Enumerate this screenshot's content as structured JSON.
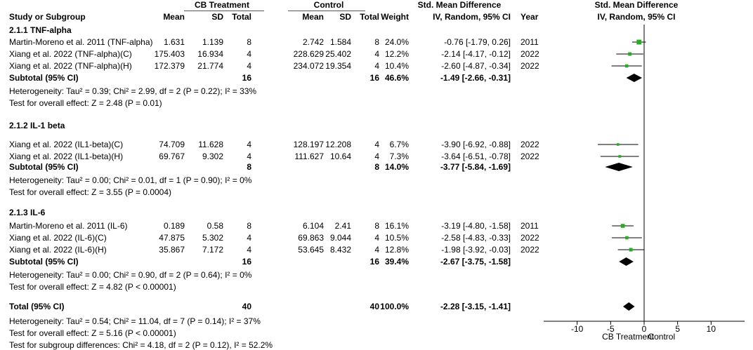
{
  "header": {
    "cb_treatment": "CB Treatment",
    "control": "Control",
    "smd_col": "Std. Mean Difference",
    "smd_method": "IV, Random, 95% CI",
    "plot_title": "Std. Mean Difference",
    "plot_method": "IV, Random, 95% CI",
    "study_col": "Study or Subgroup",
    "mean": "Mean",
    "sd": "SD",
    "total": "Total",
    "weight": "Weight",
    "year": "Year"
  },
  "subgroups": [
    {
      "title": "2.1.1 TNF-alpha",
      "studies": [
        {
          "name": "Martin-Moreno et al. 2011 (TNF-alpha)",
          "cb_mean": "1.631",
          "cb_sd": "1.139",
          "cb_n": "8",
          "c_mean": "2.742",
          "c_sd": "1.584",
          "c_n": "8",
          "weight": "24.0%",
          "ci_text": "-0.76 [-1.79, 0.26]",
          "year": "2011",
          "smd": -0.76,
          "lo": -1.79,
          "hi": 0.26
        },
        {
          "name": "Xiang et al. 2022 (TNF-alpha)(C)",
          "cb_mean": "175.403",
          "cb_sd": "16.934",
          "cb_n": "4",
          "c_mean": "228.629",
          "c_sd": "25.402",
          "c_n": "4",
          "weight": "12.2%",
          "ci_text": "-2.14 [-4.17, -0.12]",
          "year": "2022",
          "smd": -2.14,
          "lo": -4.17,
          "hi": -0.12
        },
        {
          "name": "Xiang et al. 2022 (TNF-alpha)(H)",
          "cb_mean": "172.379",
          "cb_sd": "21.774",
          "cb_n": "4",
          "c_mean": "234.072",
          "c_sd": "19.354",
          "c_n": "4",
          "weight": "10.4%",
          "ci_text": "-2.60 [-4.87, -0.34]",
          "year": "2022",
          "smd": -2.6,
          "lo": -4.87,
          "hi": -0.34
        }
      ],
      "subtotal": {
        "label": "Subtotal (95% CI)",
        "cb_n": "16",
        "c_n": "16",
        "weight": "46.6%",
        "ci_text": "-1.49 [-2.66, -0.31]",
        "smd": -1.49,
        "lo": -2.66,
        "hi": -0.31
      },
      "heterogeneity": "Heterogeneity: Tau² = 0.39; Chi² = 2.99, df = 2 (P = 0.22); I² = 33%",
      "overall": "Test for overall effect: Z = 2.48 (P = 0.01)"
    },
    {
      "title": "2.1.2 IL-1 beta",
      "studies": [
        {
          "name": "Xiang et al. 2022 (IL1-beta)(C)",
          "cb_mean": "74.709",
          "cb_sd": "11.628",
          "cb_n": "4",
          "c_mean": "128.197",
          "c_sd": "12.208",
          "c_n": "4",
          "weight": "6.7%",
          "ci_text": "-3.90 [-6.92, -0.88]",
          "year": "2022",
          "smd": -3.9,
          "lo": -6.92,
          "hi": -0.88
        },
        {
          "name": "Xiang et al. 2022 (IL1-beta)(H)",
          "cb_mean": "69.767",
          "cb_sd": "9.302",
          "cb_n": "4",
          "c_mean": "111.627",
          "c_sd": "10.64",
          "c_n": "4",
          "weight": "7.3%",
          "ci_text": "-3.64 [-6.51, -0.78]",
          "year": "2022",
          "smd": -3.64,
          "lo": -6.51,
          "hi": -0.78
        }
      ],
      "subtotal": {
        "label": "Subtotal (95% CI)",
        "cb_n": "8",
        "c_n": "8",
        "weight": "14.0%",
        "ci_text": "-3.77 [-5.84, -1.69]",
        "smd": -3.77,
        "lo": -5.84,
        "hi": -1.69
      },
      "heterogeneity": "Heterogeneity: Tau² = 0.00; Chi² = 0.01, df = 1 (P = 0.90); I² = 0%",
      "overall": "Test for overall effect: Z = 3.55 (P = 0.0004)"
    },
    {
      "title": "2.1.3 IL-6",
      "studies": [
        {
          "name": "Martin-Moreno et al. 2011 (IL-6)",
          "cb_mean": "0.189",
          "cb_sd": "0.58",
          "cb_n": "8",
          "c_mean": "6.104",
          "c_sd": "2.41",
          "c_n": "8",
          "weight": "16.1%",
          "ci_text": "-3.19 [-4.80, -1.58]",
          "year": "2011",
          "smd": -3.19,
          "lo": -4.8,
          "hi": -1.58
        },
        {
          "name": "Xiang et al. 2022 (IL-6)(C)",
          "cb_mean": "47.875",
          "cb_sd": "5.302",
          "cb_n": "4",
          "c_mean": "69.863",
          "c_sd": "9.044",
          "c_n": "4",
          "weight": "10.5%",
          "ci_text": "-2.58 [-4.83, -0.33]",
          "year": "2022",
          "smd": -2.58,
          "lo": -4.83,
          "hi": -0.33
        },
        {
          "name": "Xiang et al. 2022 (IL-6)(H)",
          "cb_mean": "35.867",
          "cb_sd": "7.172",
          "cb_n": "4",
          "c_mean": "53.645",
          "c_sd": "8.432",
          "c_n": "4",
          "weight": "12.8%",
          "ci_text": "-1.98 [-3.92, -0.03]",
          "year": "2022",
          "smd": -1.98,
          "lo": -3.92,
          "hi": -0.03
        }
      ],
      "subtotal": {
        "label": "Subtotal (95% CI)",
        "cb_n": "16",
        "c_n": "16",
        "weight": "39.4%",
        "ci_text": "-2.67 [-3.75, -1.58]",
        "smd": -2.67,
        "lo": -3.75,
        "hi": -1.58
      },
      "heterogeneity": "Heterogeneity: Tau² = 0.00; Chi² = 0.90, df = 2 (P = 0.64); I² = 0%",
      "overall": "Test for overall effect: Z = 4.82 (P < 0.00001)"
    }
  ],
  "total": {
    "label": "Total (95% CI)",
    "cb_n": "40",
    "c_n": "40",
    "weight": "100.0%",
    "ci_text": "-2.28 [-3.15, -1.41]",
    "smd": -2.28,
    "lo": -3.15,
    "hi": -1.41
  },
  "footer": {
    "heterogeneity": "Heterogeneity: Tau² = 0.54; Chi² = 11.04, df = 7 (P = 0.14); I² = 37%",
    "overall": "Test for overall effect: Z = 5.16 (P < 0.00001)",
    "subgroup_diff": "Test for subgroup differences: Chi² = 4.18, df = 2 (P = 0.12), I² = 52.2%"
  },
  "chart_data": {
    "type": "forest",
    "xlim": [
      -15,
      15
    ],
    "ticks": [
      -10,
      -5,
      0,
      5,
      10
    ],
    "tick_labels": [
      "-10",
      "-5",
      "0",
      "5",
      "10"
    ],
    "favours_left": "CB Treatment",
    "favours_right": "Control",
    "colors": {
      "study_marker": "#22b022",
      "diamond": "#000000",
      "ci_line": "#000000",
      "axis": "#000000"
    }
  }
}
